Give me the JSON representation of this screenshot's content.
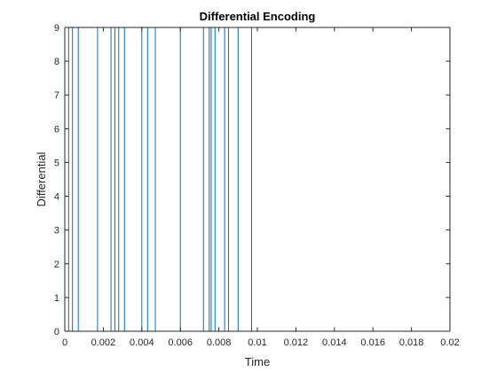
{
  "chart_data": {
    "type": "line",
    "style": "step",
    "title": "Differential Encoding",
    "xlabel": "Time",
    "ylabel": "Differential",
    "xlim": [
      0,
      0.02
    ],
    "ylim": [
      0,
      9
    ],
    "xticks": [
      0,
      0.002,
      0.004,
      0.006,
      0.008,
      0.01,
      0.012,
      0.014,
      0.016,
      0.018,
      0.02
    ],
    "xtick_labels": [
      "0",
      "0.002",
      "0.004",
      "0.006",
      "0.008",
      "0.01",
      "0.012",
      "0.014",
      "0.016",
      "0.018",
      "0.02"
    ],
    "yticks": [
      0,
      1,
      2,
      3,
      4,
      5,
      6,
      7,
      8,
      9
    ],
    "ytick_labels": [
      "0",
      "1",
      "2",
      "3",
      "4",
      "5",
      "6",
      "7",
      "8",
      "9"
    ],
    "grid": false,
    "line_color": "#0072BD",
    "series": [
      {
        "x": [
          0,
          0.0002,
          0.0002,
          0.0004,
          0.0004,
          0.0007,
          0.0007,
          0.0017,
          0.0017,
          0.0024,
          0.0024,
          0.0026,
          0.0026,
          0.0028,
          0.0028,
          0.0031,
          0.0031,
          0.004,
          0.004,
          0.0043,
          0.0043,
          0.0047,
          0.0047,
          0.006,
          0.006,
          0.0072,
          0.0072,
          0.0075,
          0.0075,
          0.0076,
          0.0076,
          0.0078,
          0.0078,
          0.0083,
          0.0083,
          0.0085,
          0.0085,
          0.009,
          0.009,
          0.0097,
          0.0097,
          0.0107
        ],
        "y": [
          0,
          0,
          9,
          9,
          0,
          0,
          9,
          9,
          0,
          0,
          9,
          9,
          0,
          0,
          9,
          9,
          0,
          0,
          9,
          9,
          0,
          0,
          9,
          9,
          0,
          0,
          9,
          9,
          0,
          0,
          9,
          9,
          0,
          0,
          9,
          9,
          0,
          0,
          9,
          9,
          0,
          0
        ]
      }
    ]
  }
}
